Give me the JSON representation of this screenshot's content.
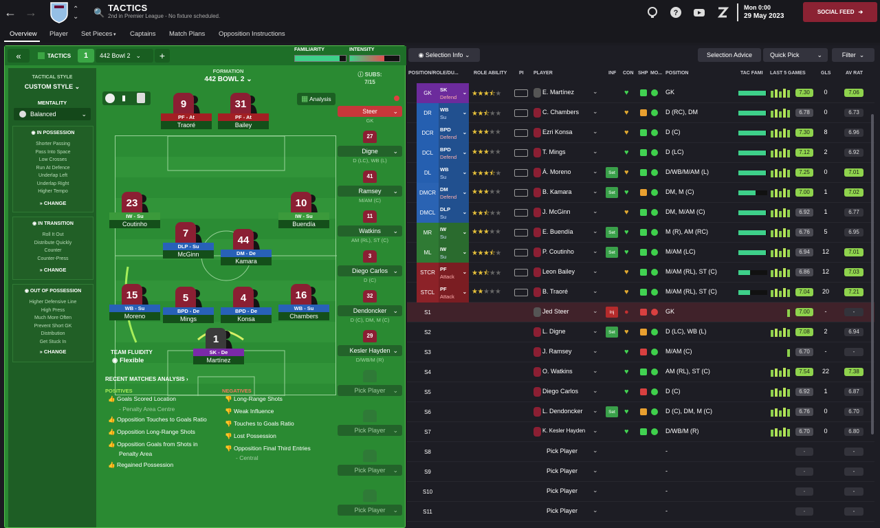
{
  "header": {
    "title": "TACTICS",
    "subtitle": "2nd in Premier League - No fixture scheduled.",
    "date_time": "Mon 0:00",
    "date": "29 May 2023",
    "social_feed": "SOCIAL FEED",
    "crest_text": "AVFC"
  },
  "tabs": [
    "Overview",
    "Player",
    "Set Pieces",
    "Captains",
    "Match Plans",
    "Opposition Instructions"
  ],
  "tactic_bar": {
    "label": "TACTICS",
    "slot": "1",
    "name": "442 Bowl  2",
    "plus": "+",
    "familiarity_label": "FAMILIARITY",
    "intensity_label": "INTENSITY",
    "collapse": "«"
  },
  "style_panel": {
    "tactical_style_label": "TACTICAL STYLE",
    "tactical_style": "CUSTOM STYLE",
    "mentality_label": "MENTALITY",
    "mentality": "Balanced",
    "in_possession": {
      "title": "IN POSSESSION",
      "items": [
        "Shorter Passing",
        "Pass Into Space",
        "Low Crosses",
        "Run At Defence",
        "Underlap Left",
        "Underlap Right",
        "Higher Tempo"
      ]
    },
    "in_transition": {
      "title": "IN TRANSITION",
      "items": [
        "Roll It Out",
        "Distribute Quickly",
        "Counter",
        "Counter-Press"
      ]
    },
    "out_of_possession": {
      "title": "OUT OF POSSESSION",
      "items": [
        "Higher Defensive Line",
        "High Press",
        "Much More Often",
        "Prevent Short GK",
        "Distribution",
        "Get Stuck In"
      ]
    },
    "change": "CHANGE"
  },
  "formation": {
    "label": "FORMATION",
    "name": "442 BOWL  2",
    "analysis": "Analysis",
    "team_fluidity_label": "TEAM FLUIDITY",
    "team_fluidity": "Flexible"
  },
  "pitch_players": [
    {
      "num": "9",
      "role": "PF - At",
      "name": "Traoré"
    },
    {
      "num": "31",
      "role": "PF - At",
      "name": "Bailey"
    },
    {
      "num": "23",
      "role": "IW - Su",
      "name": "Coutinho"
    },
    {
      "num": "10",
      "role": "IW - Su",
      "name": "Buendía"
    },
    {
      "num": "7",
      "role": "DLP - Su",
      "name": "McGinn"
    },
    {
      "num": "44",
      "role": "DM - De",
      "name": "Kamara"
    },
    {
      "num": "15",
      "role": "WB - Su",
      "name": "Moreno"
    },
    {
      "num": "5",
      "role": "BPD - De",
      "name": "Mings"
    },
    {
      "num": "4",
      "role": "BPD - De",
      "name": "Konsa"
    },
    {
      "num": "16",
      "role": "WB - Su",
      "name": "Chambers"
    },
    {
      "num": "1",
      "role": "SK - De",
      "name": "Martínez"
    }
  ],
  "subs": {
    "label": "SUBS:",
    "count": "7/15",
    "list": [
      {
        "name": "Steer",
        "pos": "GK",
        "num": ""
      },
      {
        "name": "Digne",
        "pos": "D (LC), WB (L)",
        "num": "27"
      },
      {
        "name": "Ramsey",
        "pos": "M/AM (C)",
        "num": "41"
      },
      {
        "name": "Watkins",
        "pos": "AM (RL), ST (C)",
        "num": "11"
      },
      {
        "name": "Diego Carlos",
        "pos": "D (C)",
        "num": "3"
      },
      {
        "name": "Dendoncker",
        "pos": "D (C), DM, M (C)",
        "num": "32"
      },
      {
        "name": "Kesler Hayden",
        "pos": "D/WB/M (R)",
        "num": "29"
      },
      {
        "name": "Pick Player",
        "pos": "",
        "num": ""
      },
      {
        "name": "Pick Player",
        "pos": "",
        "num": ""
      },
      {
        "name": "Pick Player",
        "pos": "",
        "num": ""
      },
      {
        "name": "Pick Player",
        "pos": "",
        "num": ""
      }
    ]
  },
  "analysis": {
    "title": "RECENT MATCHES ANALYSIS",
    "positives_label": "POSITIVES",
    "negatives_label": "NEGATIVES",
    "positives": [
      "Goals Scored Location",
      "- Penalty Area Centre",
      "Opposition Touches to Goals Ratio",
      "Opposition Long-Range Shots",
      "Opposition Goals from Shots in",
      "Penalty Area",
      "Regained Possession"
    ],
    "negatives": [
      "Long-Range Shots",
      "Weak Influence",
      "Touches to Goals Ratio",
      "Lost Possession",
      "Opposition Final Third Entries",
      "- Central"
    ]
  },
  "right_toolbar": {
    "selection_info": "Selection Info",
    "selection_advice": "Selection Advice",
    "quick_pick": "Quick Pick",
    "filter": "Filter"
  },
  "columns": [
    "POSITION/ROLE/DU...",
    "ROLE ABILITY",
    "PI",
    "PLAYER",
    "INF",
    "CON",
    "SHP",
    "MO...",
    "POSITION",
    "TAC FAMI",
    "LAST 5 GAMES",
    "GLS",
    "AV RAT"
  ],
  "rows": [
    {
      "pos": "GK",
      "role": "SK",
      "duty": "Defend",
      "stars": 3.5,
      "name": "E. Martínez",
      "inf": "",
      "position": "GK",
      "fam": 0.95,
      "rating": "7.30",
      "gls": "0",
      "avr": "7.06"
    },
    {
      "pos": "DR",
      "role": "WB",
      "duty": "Su",
      "stars": 2.5,
      "name": "C. Chambers",
      "inf": "",
      "position": "D (RC), DM",
      "fam": 0.95,
      "rating": "6.78",
      "gls": "0",
      "avr": "6.73"
    },
    {
      "pos": "DCR",
      "role": "BPD",
      "duty": "Defend",
      "stars": 3,
      "name": "Ezri Konsa",
      "inf": "",
      "position": "D (C)",
      "fam": 0.95,
      "rating": "7.30",
      "gls": "8",
      "avr": "6.96"
    },
    {
      "pos": "DCL",
      "role": "BPD",
      "duty": "Defend",
      "stars": 3,
      "name": "T. Mings",
      "inf": "",
      "position": "D (LC)",
      "fam": 0.95,
      "rating": "7.12",
      "gls": "2",
      "avr": "6.92"
    },
    {
      "pos": "DL",
      "role": "WB",
      "duty": "Su",
      "stars": 3.5,
      "name": "Á. Moreno",
      "inf": "Set",
      "position": "D/WB/M/AM (L)",
      "fam": 0.95,
      "rating": "7.25",
      "gls": "0",
      "avr": "7.01"
    },
    {
      "pos": "DMCR",
      "role": "DM",
      "duty": "Defend",
      "stars": 3,
      "name": "B. Kamara",
      "inf": "Set",
      "position": "DM, M (C)",
      "fam": 0.6,
      "rating": "7.00",
      "gls": "1",
      "avr": "7.02"
    },
    {
      "pos": "DMCL",
      "role": "DLP",
      "duty": "Su",
      "stars": 2.5,
      "name": "J. McGinn",
      "inf": "",
      "position": "DM, M/AM (C)",
      "fam": 0.95,
      "rating": "6.92",
      "gls": "1",
      "avr": "6.77"
    },
    {
      "pos": "MR",
      "role": "IW",
      "duty": "Su",
      "stars": 3,
      "name": "E. Buendía",
      "inf": "Set",
      "position": "M (R), AM (RC)",
      "fam": 0.95,
      "rating": "6.76",
      "gls": "5",
      "avr": "6.95"
    },
    {
      "pos": "ML",
      "role": "IW",
      "duty": "Su",
      "stars": 3.5,
      "name": "P. Coutinho",
      "inf": "Set",
      "position": "M/AM (LC)",
      "fam": 0.95,
      "rating": "6.94",
      "gls": "12",
      "avr": "7.01"
    },
    {
      "pos": "STCR",
      "role": "PF",
      "duty": "Attack",
      "stars": 2.5,
      "name": "Leon Bailey",
      "inf": "",
      "position": "M/AM (RL), ST (C)",
      "fam": 0.4,
      "rating": "6.86",
      "gls": "12",
      "avr": "7.03"
    },
    {
      "pos": "STCL",
      "role": "PF",
      "duty": "Attack",
      "stars": 2,
      "name": "B. Traoré",
      "inf": "",
      "position": "M/AM (RL), ST (C)",
      "fam": 0.4,
      "rating": "7.04",
      "gls": "20",
      "avr": "7.21"
    },
    {
      "pos": "S1",
      "role": "",
      "duty": "",
      "stars": 0,
      "name": "Jed Steer",
      "inf": "Inj",
      "position": "GK",
      "fam": 0,
      "rating": "7.00",
      "gls": "-",
      "avr": "-"
    },
    {
      "pos": "S2",
      "role": "",
      "duty": "",
      "stars": 0,
      "name": "L. Digne",
      "inf": "Set",
      "position": "D (LC), WB (L)",
      "fam": 0,
      "rating": "7.08",
      "gls": "2",
      "avr": "6.94"
    },
    {
      "pos": "S3",
      "role": "",
      "duty": "",
      "stars": 0,
      "name": "J. Ramsey",
      "inf": "",
      "position": "M/AM (C)",
      "fam": 0,
      "rating": "6.70",
      "gls": "-",
      "avr": "-"
    },
    {
      "pos": "S4",
      "role": "",
      "duty": "",
      "stars": 0,
      "name": "O. Watkins",
      "inf": "",
      "position": "AM (RL), ST (C)",
      "fam": 0,
      "rating": "7.54",
      "gls": "22",
      "avr": "7.38"
    },
    {
      "pos": "S5",
      "role": "",
      "duty": "",
      "stars": 0,
      "name": "Diego Carlos",
      "inf": "",
      "position": "D (C)",
      "fam": 0,
      "rating": "6.92",
      "gls": "1",
      "avr": "6.87"
    },
    {
      "pos": "S6",
      "role": "",
      "duty": "",
      "stars": 0,
      "name": "L. Dendoncker",
      "inf": "Set",
      "position": "D (C), DM, M (C)",
      "fam": 0,
      "rating": "6.76",
      "gls": "0",
      "avr": "6.70"
    },
    {
      "pos": "S7",
      "role": "",
      "duty": "",
      "stars": 0,
      "name": "K. Kesler Hayden",
      "inf": "",
      "position": "D/WB/M (R)",
      "fam": 0,
      "rating": "6.70",
      "gls": "0",
      "avr": "6.80"
    },
    {
      "pos": "S8",
      "role": "",
      "duty": "",
      "stars": 0,
      "name": "Pick Player",
      "inf": "",
      "position": "-",
      "fam": 0,
      "rating": "-",
      "gls": "",
      "avr": "-"
    },
    {
      "pos": "S9",
      "role": "",
      "duty": "",
      "stars": 0,
      "name": "Pick Player",
      "inf": "",
      "position": "-",
      "fam": 0,
      "rating": "-",
      "gls": "",
      "avr": "-"
    },
    {
      "pos": "S10",
      "role": "",
      "duty": "",
      "stars": 0,
      "name": "Pick Player",
      "inf": "",
      "position": "-",
      "fam": 0,
      "rating": "-",
      "gls": "",
      "avr": "-"
    },
    {
      "pos": "S11",
      "role": "",
      "duty": "",
      "stars": 0,
      "name": "Pick Player",
      "inf": "",
      "position": "-",
      "fam": 0,
      "rating": "-",
      "gls": "",
      "avr": "-"
    }
  ]
}
